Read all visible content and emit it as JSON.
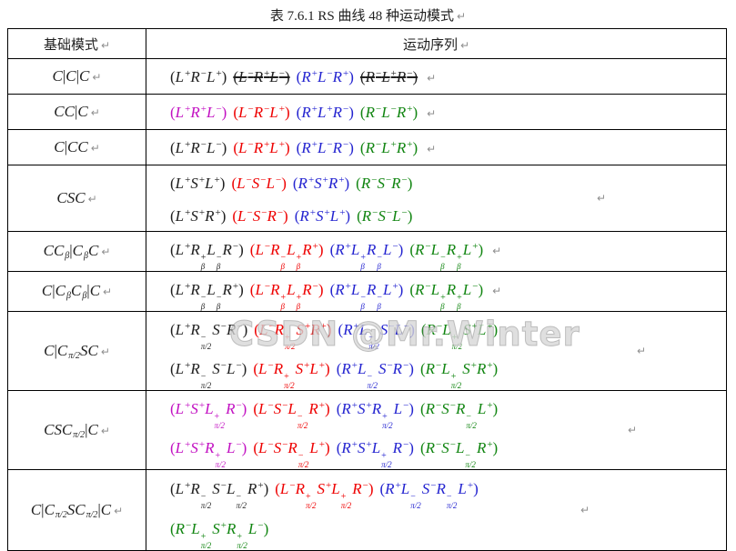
{
  "title": "表 7.6.1 RS 曲线 48 种运动模式",
  "pilcrow": "↵",
  "watermark": "CSDN @Mr.Winter",
  "header": {
    "col1": "基础模式",
    "col2": "运动序列"
  },
  "palette": {
    "black": "#1f1f1f",
    "magenta": "#c211c2",
    "red": "#ee0000",
    "blue": "#2424d0",
    "green": "#118511"
  },
  "symbols": {
    "sub_b": "β",
    "sub_p": "π/2"
  },
  "rows": [
    {
      "mode": "C|C|C",
      "lines": [
        [
          {
            "s": "(L+R-L+)",
            "c": "black"
          },
          {
            "s": "(L-R+L-)",
            "c": "black",
            "strike": true
          },
          {
            "s": "(R+L-R+)",
            "c": "blue"
          },
          {
            "s": "(R-L+R-)",
            "c": "black",
            "strike": true
          }
        ]
      ]
    },
    {
      "mode": "CC|C",
      "lines": [
        [
          {
            "s": "(L+R+L-)",
            "c": "magenta"
          },
          {
            "s": "(L-R-L+)",
            "c": "red"
          },
          {
            "s": "(R+L+R-)",
            "c": "blue"
          },
          {
            "s": "(R-L-R+)",
            "c": "green"
          }
        ]
      ]
    },
    {
      "mode": "C|CC",
      "lines": [
        [
          {
            "s": "(L+R-L-)",
            "c": "black"
          },
          {
            "s": "(L-R+L+)",
            "c": "red"
          },
          {
            "s": "(R+L-R-)",
            "c": "blue"
          },
          {
            "s": "(R-L+R+)",
            "c": "green"
          }
        ]
      ]
    },
    {
      "mode": "CSC",
      "lines": [
        [
          {
            "s": "(L+S+L+)",
            "c": "black"
          },
          {
            "s": "(L-S-L-)",
            "c": "red"
          },
          {
            "s": "(R+S+R+)",
            "c": "blue"
          },
          {
            "s": "(R-S-R-)",
            "c": "green"
          }
        ],
        [
          {
            "s": "(L+S+R+)",
            "c": "black"
          },
          {
            "s": "(L-S-R-)",
            "c": "red"
          },
          {
            "s": "(R+S+L+)",
            "c": "blue"
          },
          {
            "s": "(R-S-L-)",
            "c": "green"
          }
        ]
      ]
    },
    {
      "mode": "CCb|CbC",
      "lines": [
        [
          {
            "s": "(L+Rb+Lb-R-)",
            "c": "black"
          },
          {
            "s": "(L-Rb-Lb+R+)",
            "c": "red"
          },
          {
            "s": "(R+Lb+Rb-L-)",
            "c": "blue"
          },
          {
            "s": "(R-Lb-Rb+L+)",
            "c": "green"
          }
        ]
      ]
    },
    {
      "mode": "C|CbCb|C",
      "lines": [
        [
          {
            "s": "(L+Rb-Lb-R+)",
            "c": "black"
          },
          {
            "s": "(L-Rb+Lb+R-)",
            "c": "red"
          },
          {
            "s": "(R+Lb-Rb-L+)",
            "c": "blue"
          },
          {
            "s": "(R-Lb+Rb+L-)",
            "c": "green"
          }
        ]
      ]
    },
    {
      "mode": "C|CpSC",
      "lines": [
        [
          {
            "s": "(L+Rp-S-R-)",
            "c": "black"
          },
          {
            "s": "(L-Rp+S+R+)",
            "c": "red"
          },
          {
            "s": "(R+Lp-S-L-)",
            "c": "blue"
          },
          {
            "s": "(R-Lp+S+L+)",
            "c": "green"
          }
        ],
        [
          {
            "s": "(L+Rp-S-L-)",
            "c": "black"
          },
          {
            "s": "(L-Rp+S+L+)",
            "c": "red"
          },
          {
            "s": "(R+Lp-S-R-)",
            "c": "blue"
          },
          {
            "s": "(R-Lp+S+R+)",
            "c": "green"
          }
        ]
      ]
    },
    {
      "mode": "CSCp|C",
      "lines": [
        [
          {
            "s": "(L+S+Lp+R-)",
            "c": "magenta"
          },
          {
            "s": "(L-S-Lp-R+)",
            "c": "red"
          },
          {
            "s": "(R+S+Rp+L-)",
            "c": "blue"
          },
          {
            "s": "(R-S-Rp-L+)",
            "c": "green"
          }
        ],
        [
          {
            "s": "(L+S+Rp+L-)",
            "c": "magenta"
          },
          {
            "s": "(L-S-Rp-L+)",
            "c": "red"
          },
          {
            "s": "(R+S+Lp+R-)",
            "c": "blue"
          },
          {
            "s": "(R-S-Lp-R+)",
            "c": "green"
          }
        ]
      ]
    },
    {
      "mode": "C|CpSCp|C",
      "lines": [
        [
          {
            "s": "(L+Rp-S-Lp-R+)",
            "c": "black"
          },
          {
            "s": "(L-Rp+S+Lp+R-)",
            "c": "red"
          },
          {
            "s": "(R+Lp-S-Rp-L+)",
            "c": "blue"
          }
        ],
        [
          {
            "s": "(R-Lp+S+Rp+L-)",
            "c": "green"
          }
        ]
      ]
    }
  ]
}
